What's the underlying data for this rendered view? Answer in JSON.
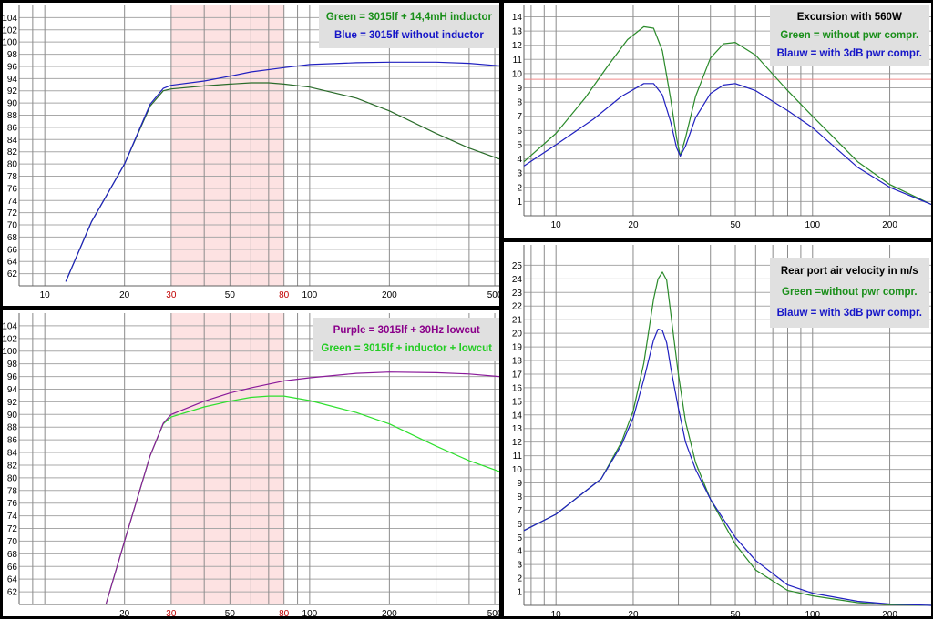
{
  "chart_data": [
    {
      "id": "spl_inductor",
      "type": "line",
      "x_scale": "log",
      "xlim": [
        8,
        520
      ],
      "ylim": [
        60,
        106
      ],
      "x_ticks": [
        10,
        20,
        30,
        50,
        80,
        100,
        200,
        500
      ],
      "x_ticks_highlight": [
        30,
        80
      ],
      "y_ticks": [
        62,
        64,
        66,
        68,
        70,
        72,
        74,
        76,
        78,
        80,
        82,
        84,
        86,
        88,
        90,
        92,
        94,
        96,
        98,
        100,
        102,
        104
      ],
      "highlight_band": [
        30,
        80
      ],
      "legend": [
        "Green = 3015lf + 14,4mH inductor",
        "Blue = 3015lf without inductor"
      ],
      "legend_colors": [
        "#1a8f1a",
        "#1515c8"
      ],
      "series": [
        {
          "color": "#2a6b2a",
          "points": [
            [
              12,
              60.7
            ],
            [
              15,
              70.5
            ],
            [
              20,
              80
            ],
            [
              25,
              89.5
            ],
            [
              28,
              92
            ],
            [
              30,
              92.3
            ],
            [
              40,
              92.8
            ],
            [
              50,
              93.1
            ],
            [
              60,
              93.3
            ],
            [
              70,
              93.3
            ],
            [
              80,
              93.1
            ],
            [
              100,
              92.6
            ],
            [
              150,
              90.8
            ],
            [
              200,
              88.7
            ],
            [
              300,
              85
            ],
            [
              400,
              82.6
            ],
            [
              520,
              80.8
            ]
          ]
        },
        {
          "color": "#2020c0",
          "points": [
            [
              12,
              60.7
            ],
            [
              15,
              70.5
            ],
            [
              20,
              80
            ],
            [
              25,
              89.8
            ],
            [
              28,
              92.4
            ],
            [
              30,
              92.9
            ],
            [
              40,
              93.6
            ],
            [
              50,
              94.4
            ],
            [
              60,
              95.1
            ],
            [
              80,
              95.8
            ],
            [
              100,
              96.3
            ],
            [
              150,
              96.6
            ],
            [
              200,
              96.7
            ],
            [
              300,
              96.7
            ],
            [
              400,
              96.5
            ],
            [
              520,
              96.1
            ]
          ]
        }
      ]
    },
    {
      "id": "excursion",
      "type": "line",
      "x_scale": "log",
      "xlim": [
        7.5,
        290
      ],
      "ylim": [
        0,
        14.8
      ],
      "x_ticks": [
        10,
        20,
        50,
        100,
        200
      ],
      "y_ticks": [
        1,
        2,
        3,
        4,
        5,
        6,
        7,
        8,
        9,
        10,
        11,
        12,
        13,
        14
      ],
      "limit_line": 9.6,
      "legend": [
        "Excursion with 560W",
        "Green = without pwr compr.",
        "Blauw = with  3dB pwr compr."
      ],
      "legend_colors": [
        "#000000",
        "#1a8f1a",
        "#1515c8"
      ],
      "series": [
        {
          "color": "#2a8a2a",
          "points": [
            [
              7.5,
              3.8
            ],
            [
              10,
              5.8
            ],
            [
              13,
              8.3
            ],
            [
              16,
              10.6
            ],
            [
              19,
              12.4
            ],
            [
              22,
              13.3
            ],
            [
              24,
              13.2
            ],
            [
              26,
              11.6
            ],
            [
              28,
              8.2
            ],
            [
              29.5,
              5.5
            ],
            [
              30.5,
              4.2
            ],
            [
              32,
              5.5
            ],
            [
              35,
              8.4
            ],
            [
              40,
              11.1
            ],
            [
              45,
              12.1
            ],
            [
              50,
              12.2
            ],
            [
              60,
              11.3
            ],
            [
              80,
              8.8
            ],
            [
              100,
              7.0
            ],
            [
              150,
              3.8
            ],
            [
              200,
              2.2
            ],
            [
              290,
              0.8
            ]
          ]
        },
        {
          "color": "#2020c0",
          "points": [
            [
              7.5,
              3.5
            ],
            [
              10,
              5
            ],
            [
              14,
              6.8
            ],
            [
              18,
              8.4
            ],
            [
              22,
              9.3
            ],
            [
              24,
              9.3
            ],
            [
              26,
              8.5
            ],
            [
              28,
              6.6
            ],
            [
              29.5,
              4.8
            ],
            [
              30.5,
              4.2
            ],
            [
              32,
              4.9
            ],
            [
              35,
              6.9
            ],
            [
              40,
              8.6
            ],
            [
              45,
              9.2
            ],
            [
              50,
              9.3
            ],
            [
              60,
              8.8
            ],
            [
              80,
              7.4
            ],
            [
              100,
              6.2
            ],
            [
              150,
              3.4
            ],
            [
              200,
              2.0
            ],
            [
              290,
              0.8
            ]
          ]
        }
      ]
    },
    {
      "id": "spl_lowcut",
      "type": "line",
      "x_scale": "log",
      "xlim": [
        8,
        520
      ],
      "ylim": [
        60,
        106
      ],
      "x_ticks": [
        20,
        30,
        50,
        80,
        100,
        200,
        500
      ],
      "x_ticks_highlight": [
        30,
        80
      ],
      "y_ticks": [
        62,
        64,
        66,
        68,
        70,
        72,
        74,
        76,
        78,
        80,
        82,
        84,
        86,
        88,
        90,
        92,
        94,
        96,
        98,
        100,
        102,
        104
      ],
      "highlight_band": [
        30,
        80
      ],
      "legend": [
        "Purple = 3015lf + 30Hz lowcut",
        "Green = 3015lf + inductor + lowcut"
      ],
      "legend_colors": [
        "#8a008a",
        "#22cc22"
      ],
      "series": [
        {
          "color": "#2ee02e",
          "points": [
            [
              17,
              60
            ],
            [
              20,
              70
            ],
            [
              25,
              83.5
            ],
            [
              28,
              88.5
            ],
            [
              30,
              89.6
            ],
            [
              40,
              91.2
            ],
            [
              50,
              92.1
            ],
            [
              60,
              92.7
            ],
            [
              70,
              92.9
            ],
            [
              80,
              92.9
            ],
            [
              100,
              92.2
            ],
            [
              150,
              90.3
            ],
            [
              200,
              88.5
            ],
            [
              300,
              85
            ],
            [
              400,
              82.7
            ],
            [
              520,
              81.0
            ]
          ]
        },
        {
          "color": "#8a1a9a",
          "points": [
            [
              17,
              60
            ],
            [
              20,
              70
            ],
            [
              25,
              83.5
            ],
            [
              28,
              88.6
            ],
            [
              30,
              90
            ],
            [
              40,
              92.1
            ],
            [
              50,
              93.4
            ],
            [
              60,
              94.2
            ],
            [
              80,
              95.3
            ],
            [
              100,
              95.8
            ],
            [
              150,
              96.5
            ],
            [
              200,
              96.7
            ],
            [
              300,
              96.6
            ],
            [
              400,
              96.4
            ],
            [
              520,
              96.0
            ]
          ]
        }
      ]
    },
    {
      "id": "port_velocity",
      "type": "line",
      "x_scale": "log",
      "xlim": [
        7.5,
        290
      ],
      "ylim": [
        0,
        26.5
      ],
      "x_ticks": [
        10,
        20,
        50,
        100,
        200
      ],
      "y_ticks": [
        1,
        2,
        3,
        4,
        5,
        6,
        7,
        8,
        9,
        10,
        11,
        12,
        13,
        14,
        15,
        16,
        17,
        18,
        19,
        20,
        21,
        22,
        23,
        24,
        25
      ],
      "legend": [
        "Rear port air velocity in m/s",
        "Green =without pwr compr.",
        "Blauw = with 3dB pwr compr."
      ],
      "legend_colors": [
        "#000000",
        "#1a8f1a",
        "#1515c8"
      ],
      "series": [
        {
          "color": "#2a8a2a",
          "points": [
            [
              7.5,
              5.5
            ],
            [
              10,
              6.7
            ],
            [
              15,
              9.3
            ],
            [
              18,
              12
            ],
            [
              20,
              14.3
            ],
            [
              22,
              17.8
            ],
            [
              24,
              22.5
            ],
            [
              25,
              24
            ],
            [
              26,
              24.5
            ],
            [
              27,
              23.9
            ],
            [
              28,
              21.5
            ],
            [
              30,
              17
            ],
            [
              32,
              13.5
            ],
            [
              35,
              10.5
            ],
            [
              40,
              7.8
            ],
            [
              50,
              4.5
            ],
            [
              60,
              2.6
            ],
            [
              80,
              1.1
            ],
            [
              100,
              0.7
            ],
            [
              150,
              0.2
            ],
            [
              200,
              0.05
            ],
            [
              290,
              0
            ]
          ]
        },
        {
          "color": "#2020c0",
          "points": [
            [
              7.5,
              5.5
            ],
            [
              10,
              6.7
            ],
            [
              15,
              9.3
            ],
            [
              18,
              11.8
            ],
            [
              20,
              13.8
            ],
            [
              22,
              16.6
            ],
            [
              24,
              19.5
            ],
            [
              25,
              20.3
            ],
            [
              26,
              20.2
            ],
            [
              27,
              19.3
            ],
            [
              28,
              17.5
            ],
            [
              30,
              14.5
            ],
            [
              32,
              12
            ],
            [
              35,
              10
            ],
            [
              40,
              7.8
            ],
            [
              50,
              5
            ],
            [
              60,
              3.3
            ],
            [
              80,
              1.5
            ],
            [
              100,
              0.9
            ],
            [
              150,
              0.3
            ],
            [
              200,
              0.1
            ],
            [
              290,
              0
            ]
          ]
        }
      ]
    }
  ]
}
